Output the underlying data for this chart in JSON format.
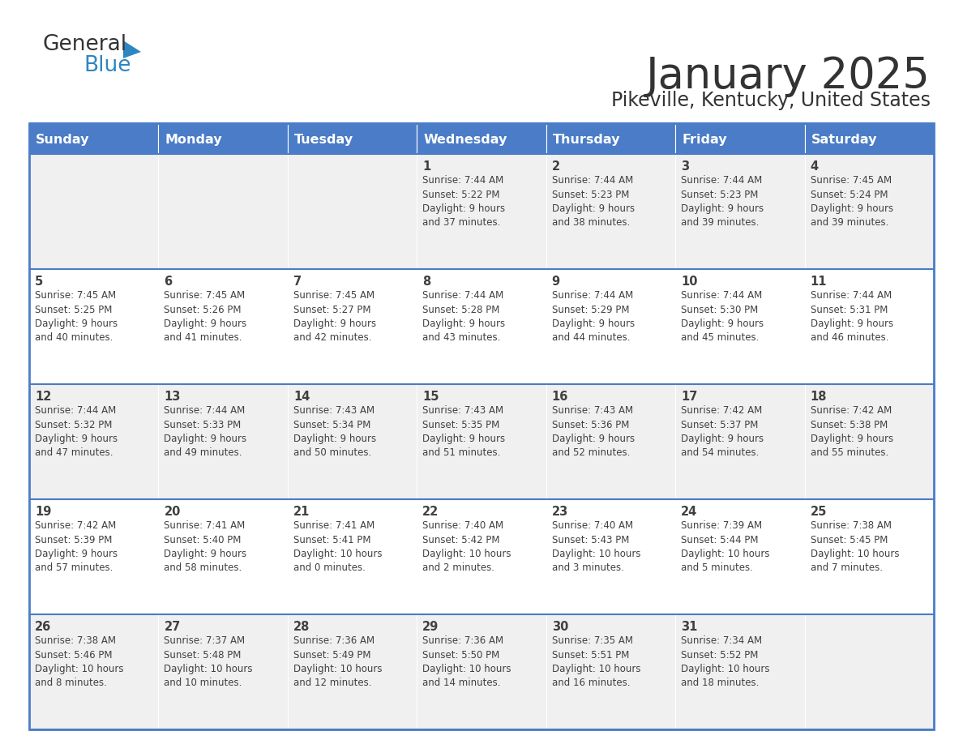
{
  "title": "January 2025",
  "subtitle": "Pikeville, Kentucky, United States",
  "header_bg_color": "#4A7CC7",
  "header_text_color": "#FFFFFF",
  "day_headers": [
    "Sunday",
    "Monday",
    "Tuesday",
    "Wednesday",
    "Thursday",
    "Friday",
    "Saturday"
  ],
  "row_bg_colors": [
    "#F0F0F0",
    "#FFFFFF",
    "#F0F0F0",
    "#FFFFFF",
    "#F0F0F0"
  ],
  "border_color": "#4A7CC7",
  "text_color": "#404040",
  "title_color": "#333333",
  "calendar": [
    [
      {
        "day": "",
        "info": ""
      },
      {
        "day": "",
        "info": ""
      },
      {
        "day": "",
        "info": ""
      },
      {
        "day": "1",
        "info": "Sunrise: 7:44 AM\nSunset: 5:22 PM\nDaylight: 9 hours\nand 37 minutes."
      },
      {
        "day": "2",
        "info": "Sunrise: 7:44 AM\nSunset: 5:23 PM\nDaylight: 9 hours\nand 38 minutes."
      },
      {
        "day": "3",
        "info": "Sunrise: 7:44 AM\nSunset: 5:23 PM\nDaylight: 9 hours\nand 39 minutes."
      },
      {
        "day": "4",
        "info": "Sunrise: 7:45 AM\nSunset: 5:24 PM\nDaylight: 9 hours\nand 39 minutes."
      }
    ],
    [
      {
        "day": "5",
        "info": "Sunrise: 7:45 AM\nSunset: 5:25 PM\nDaylight: 9 hours\nand 40 minutes."
      },
      {
        "day": "6",
        "info": "Sunrise: 7:45 AM\nSunset: 5:26 PM\nDaylight: 9 hours\nand 41 minutes."
      },
      {
        "day": "7",
        "info": "Sunrise: 7:45 AM\nSunset: 5:27 PM\nDaylight: 9 hours\nand 42 minutes."
      },
      {
        "day": "8",
        "info": "Sunrise: 7:44 AM\nSunset: 5:28 PM\nDaylight: 9 hours\nand 43 minutes."
      },
      {
        "day": "9",
        "info": "Sunrise: 7:44 AM\nSunset: 5:29 PM\nDaylight: 9 hours\nand 44 minutes."
      },
      {
        "day": "10",
        "info": "Sunrise: 7:44 AM\nSunset: 5:30 PM\nDaylight: 9 hours\nand 45 minutes."
      },
      {
        "day": "11",
        "info": "Sunrise: 7:44 AM\nSunset: 5:31 PM\nDaylight: 9 hours\nand 46 minutes."
      }
    ],
    [
      {
        "day": "12",
        "info": "Sunrise: 7:44 AM\nSunset: 5:32 PM\nDaylight: 9 hours\nand 47 minutes."
      },
      {
        "day": "13",
        "info": "Sunrise: 7:44 AM\nSunset: 5:33 PM\nDaylight: 9 hours\nand 49 minutes."
      },
      {
        "day": "14",
        "info": "Sunrise: 7:43 AM\nSunset: 5:34 PM\nDaylight: 9 hours\nand 50 minutes."
      },
      {
        "day": "15",
        "info": "Sunrise: 7:43 AM\nSunset: 5:35 PM\nDaylight: 9 hours\nand 51 minutes."
      },
      {
        "day": "16",
        "info": "Sunrise: 7:43 AM\nSunset: 5:36 PM\nDaylight: 9 hours\nand 52 minutes."
      },
      {
        "day": "17",
        "info": "Sunrise: 7:42 AM\nSunset: 5:37 PM\nDaylight: 9 hours\nand 54 minutes."
      },
      {
        "day": "18",
        "info": "Sunrise: 7:42 AM\nSunset: 5:38 PM\nDaylight: 9 hours\nand 55 minutes."
      }
    ],
    [
      {
        "day": "19",
        "info": "Sunrise: 7:42 AM\nSunset: 5:39 PM\nDaylight: 9 hours\nand 57 minutes."
      },
      {
        "day": "20",
        "info": "Sunrise: 7:41 AM\nSunset: 5:40 PM\nDaylight: 9 hours\nand 58 minutes."
      },
      {
        "day": "21",
        "info": "Sunrise: 7:41 AM\nSunset: 5:41 PM\nDaylight: 10 hours\nand 0 minutes."
      },
      {
        "day": "22",
        "info": "Sunrise: 7:40 AM\nSunset: 5:42 PM\nDaylight: 10 hours\nand 2 minutes."
      },
      {
        "day": "23",
        "info": "Sunrise: 7:40 AM\nSunset: 5:43 PM\nDaylight: 10 hours\nand 3 minutes."
      },
      {
        "day": "24",
        "info": "Sunrise: 7:39 AM\nSunset: 5:44 PM\nDaylight: 10 hours\nand 5 minutes."
      },
      {
        "day": "25",
        "info": "Sunrise: 7:38 AM\nSunset: 5:45 PM\nDaylight: 10 hours\nand 7 minutes."
      }
    ],
    [
      {
        "day": "26",
        "info": "Sunrise: 7:38 AM\nSunset: 5:46 PM\nDaylight: 10 hours\nand 8 minutes."
      },
      {
        "day": "27",
        "info": "Sunrise: 7:37 AM\nSunset: 5:48 PM\nDaylight: 10 hours\nand 10 minutes."
      },
      {
        "day": "28",
        "info": "Sunrise: 7:36 AM\nSunset: 5:49 PM\nDaylight: 10 hours\nand 12 minutes."
      },
      {
        "day": "29",
        "info": "Sunrise: 7:36 AM\nSunset: 5:50 PM\nDaylight: 10 hours\nand 14 minutes."
      },
      {
        "day": "30",
        "info": "Sunrise: 7:35 AM\nSunset: 5:51 PM\nDaylight: 10 hours\nand 16 minutes."
      },
      {
        "day": "31",
        "info": "Sunrise: 7:34 AM\nSunset: 5:52 PM\nDaylight: 10 hours\nand 18 minutes."
      },
      {
        "day": "",
        "info": ""
      }
    ]
  ]
}
